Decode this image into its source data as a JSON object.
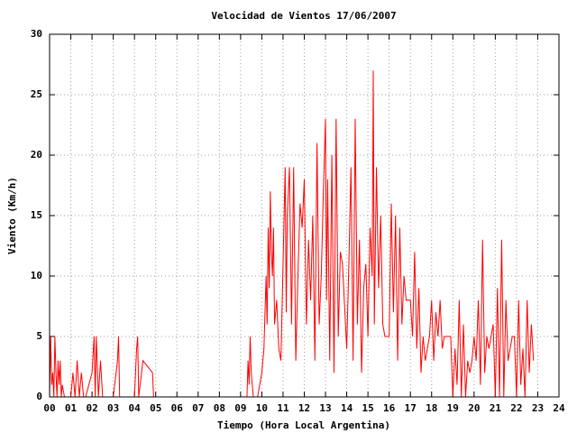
{
  "chart_data": {
    "type": "line",
    "title": "Velocidad de Vientos 17/06/2007",
    "x_label": "Tiempo (Hora Local Argentina)",
    "y_label": "Viento (Km/h)",
    "xlim": [
      0,
      24
    ],
    "xticks": [
      {
        "value": 0,
        "label": "00"
      },
      {
        "value": 1,
        "label": "01"
      },
      {
        "value": 2,
        "label": "02"
      },
      {
        "value": 3,
        "label": "03"
      },
      {
        "value": 4,
        "label": "04"
      },
      {
        "value": 5,
        "label": "05"
      },
      {
        "value": 6,
        "label": "06"
      },
      {
        "value": 7,
        "label": "07"
      },
      {
        "value": 8,
        "label": "08"
      },
      {
        "value": 9,
        "label": "09"
      },
      10,
      11,
      12,
      13,
      14,
      15,
      16,
      17,
      18,
      19,
      20,
      21,
      22,
      23,
      24
    ],
    "ylim": [
      0,
      30
    ],
    "yticks": [
      0,
      5,
      10,
      15,
      20,
      25,
      30
    ],
    "grid": true,
    "x": [
      0,
      0.05,
      0.1,
      0.15,
      0.2,
      0.25,
      0.3,
      0.35,
      0.4,
      0.45,
      0.5,
      0.55,
      0.6,
      0.7,
      0.8,
      0.9,
      1.0,
      1.1,
      1.2,
      1.3,
      1.4,
      1.5,
      1.6,
      1.7,
      2.0,
      2.1,
      2.15,
      2.2,
      2.3,
      2.4,
      2.5,
      3.0,
      3.2,
      3.25,
      3.3,
      4.0,
      4.1,
      4.15,
      4.2,
      4.4,
      4.85,
      4.9,
      5.5,
      9.3,
      9.35,
      9.4,
      9.45,
      9.5,
      9.6,
      9.7,
      9.8,
      10.0,
      10.1,
      10.2,
      10.25,
      10.3,
      10.35,
      10.4,
      10.45,
      10.5,
      10.55,
      10.6,
      10.7,
      10.8,
      10.9,
      11.0,
      11.1,
      11.15,
      11.2,
      11.3,
      11.4,
      11.5,
      11.6,
      11.7,
      11.8,
      11.9,
      12.0,
      12.1,
      12.2,
      12.3,
      12.4,
      12.5,
      12.6,
      12.7,
      12.8,
      12.9,
      13.0,
      13.05,
      13.1,
      13.2,
      13.3,
      13.4,
      13.5,
      13.6,
      13.7,
      13.8,
      14.0,
      14.1,
      14.2,
      14.3,
      14.4,
      14.5,
      14.6,
      14.7,
      14.8,
      14.9,
      15.0,
      15.1,
      15.2,
      15.25,
      15.3,
      15.4,
      15.5,
      15.6,
      15.7,
      15.8,
      16.0,
      16.1,
      16.2,
      16.3,
      16.4,
      16.5,
      16.6,
      16.7,
      16.8,
      16.9,
      17.0,
      17.1,
      17.2,
      17.3,
      17.4,
      17.5,
      17.6,
      17.7,
      17.8,
      17.9,
      18.0,
      18.1,
      18.2,
      18.3,
      18.4,
      18.5,
      18.6,
      18.7,
      18.8,
      18.9,
      19.0,
      19.1,
      19.2,
      19.3,
      19.4,
      19.5,
      19.6,
      19.7,
      19.8,
      19.9,
      20.0,
      20.1,
      20.2,
      20.3,
      20.4,
      20.5,
      20.6,
      20.7,
      20.8,
      20.9,
      21.0,
      21.1,
      21.2,
      21.3,
      21.4,
      21.5,
      21.6,
      21.7,
      21.8,
      21.9,
      22.0,
      22.1,
      22.2,
      22.3,
      22.4,
      22.5,
      22.6,
      22.7,
      22.8
    ],
    "series": [
      {
        "color": "#ff0000",
        "values": [
          0,
          5,
          1,
          2,
          0,
          5,
          2,
          0,
          3,
          1,
          3,
          0,
          1,
          0,
          0,
          0,
          0,
          2,
          0,
          3,
          0,
          2,
          0,
          0,
          2,
          5,
          0,
          5,
          0,
          3,
          0,
          0,
          3,
          5,
          0,
          0,
          4,
          5,
          0,
          3,
          2,
          0,
          0,
          0,
          3,
          1,
          5,
          2,
          0,
          0,
          0,
          2,
          4,
          10,
          6,
          14,
          9,
          17,
          12,
          10,
          14,
          6,
          8,
          4,
          3,
          11,
          19,
          7,
          15,
          19,
          6,
          19,
          3,
          10,
          16,
          14,
          18,
          6,
          13,
          8,
          15,
          3,
          21,
          6,
          10,
          17,
          23,
          8,
          18,
          3,
          20,
          2,
          23,
          5,
          12,
          11,
          4,
          11,
          19,
          3,
          23,
          6,
          13,
          2,
          9,
          11,
          5,
          14,
          10,
          27,
          6,
          19,
          9,
          15,
          6,
          5,
          5,
          16,
          7,
          15,
          3,
          14,
          6,
          10,
          8,
          8,
          8,
          5,
          12,
          4,
          9,
          2,
          5,
          3,
          4,
          5,
          8,
          3,
          7,
          5,
          8,
          4,
          5,
          5,
          5,
          5,
          0,
          4,
          1,
          8,
          0,
          6,
          0,
          3,
          2,
          3,
          5,
          3,
          8,
          1,
          13,
          2,
          5,
          4,
          5,
          6,
          0,
          9,
          0,
          13,
          0,
          8,
          3,
          4,
          5,
          5,
          0,
          8,
          1,
          4,
          0,
          8,
          2,
          6,
          3
        ]
      }
    ]
  }
}
